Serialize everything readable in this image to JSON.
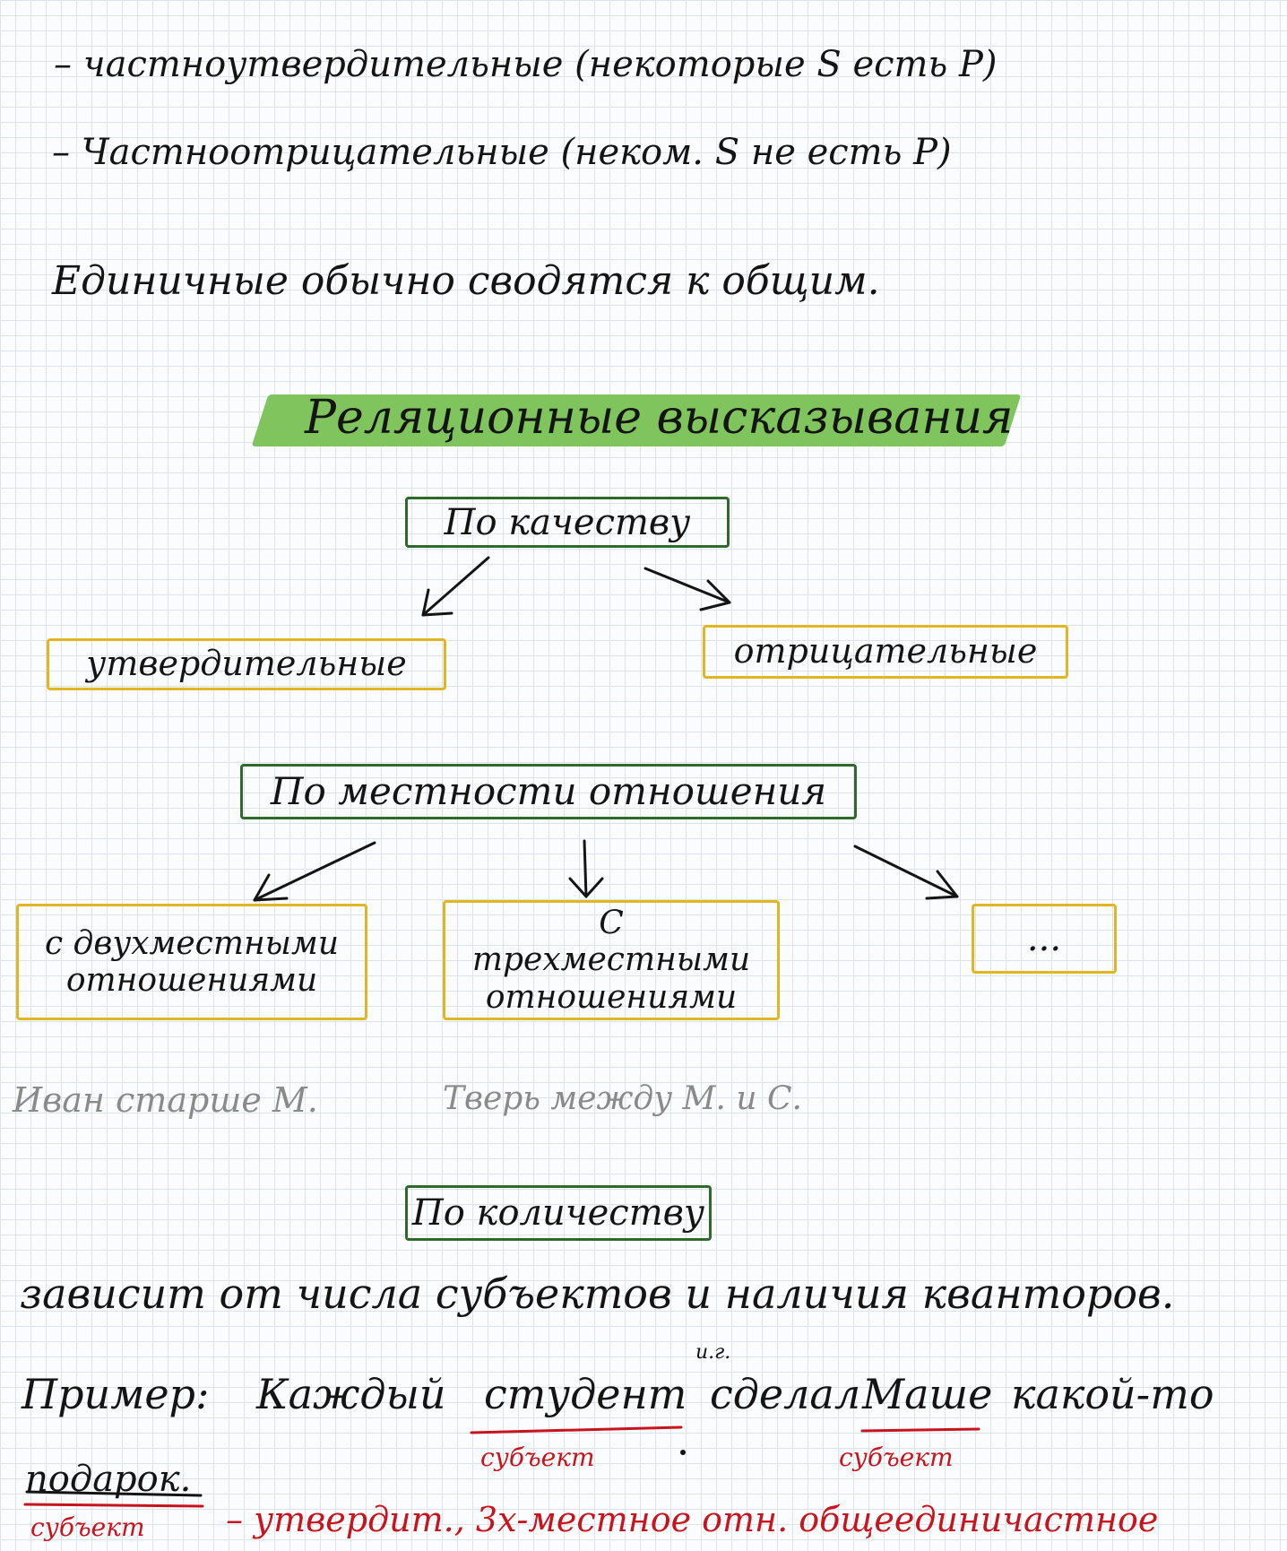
{
  "notes": {
    "line1": "– частноутвердительные (некоторые S есть P)",
    "line2": "– Частноотрицательные (неком. S не есть P)",
    "line3": "Единичные обычно сводятся к общим."
  },
  "heading": {
    "text": "Реляционные высказывания",
    "highlight_color": "#7fc45c"
  },
  "quality": {
    "title": "По качеству",
    "left": "утвердительные",
    "right": "отрицательные"
  },
  "arity": {
    "title": "По местности отношения",
    "box1": "с двухместными отношениями",
    "box2": "С трехместными отношениями",
    "box3": "...",
    "example1": "Иван старше М.",
    "example2": "Тверь между М. и С."
  },
  "quantity": {
    "title": "По количеству",
    "desc": "зависит от числа субъектов и наличия кванторов.",
    "example_prefix": "Пример:",
    "example_words": [
      "Каждый",
      "студент",
      "сделал",
      "Маше",
      "какой-то"
    ],
    "example_last": "подарок.",
    "ig_mark": "и.г.",
    "labels": [
      "субъект",
      "субъект",
      "субъект"
    ],
    "conclusion": "– утвердит., 3х-местное отн. общеединичастное"
  },
  "colors": {
    "green": "#2f6a2c",
    "yellow": "#e0b622",
    "red": "#c8141e",
    "gray": "#8a8a8a"
  }
}
